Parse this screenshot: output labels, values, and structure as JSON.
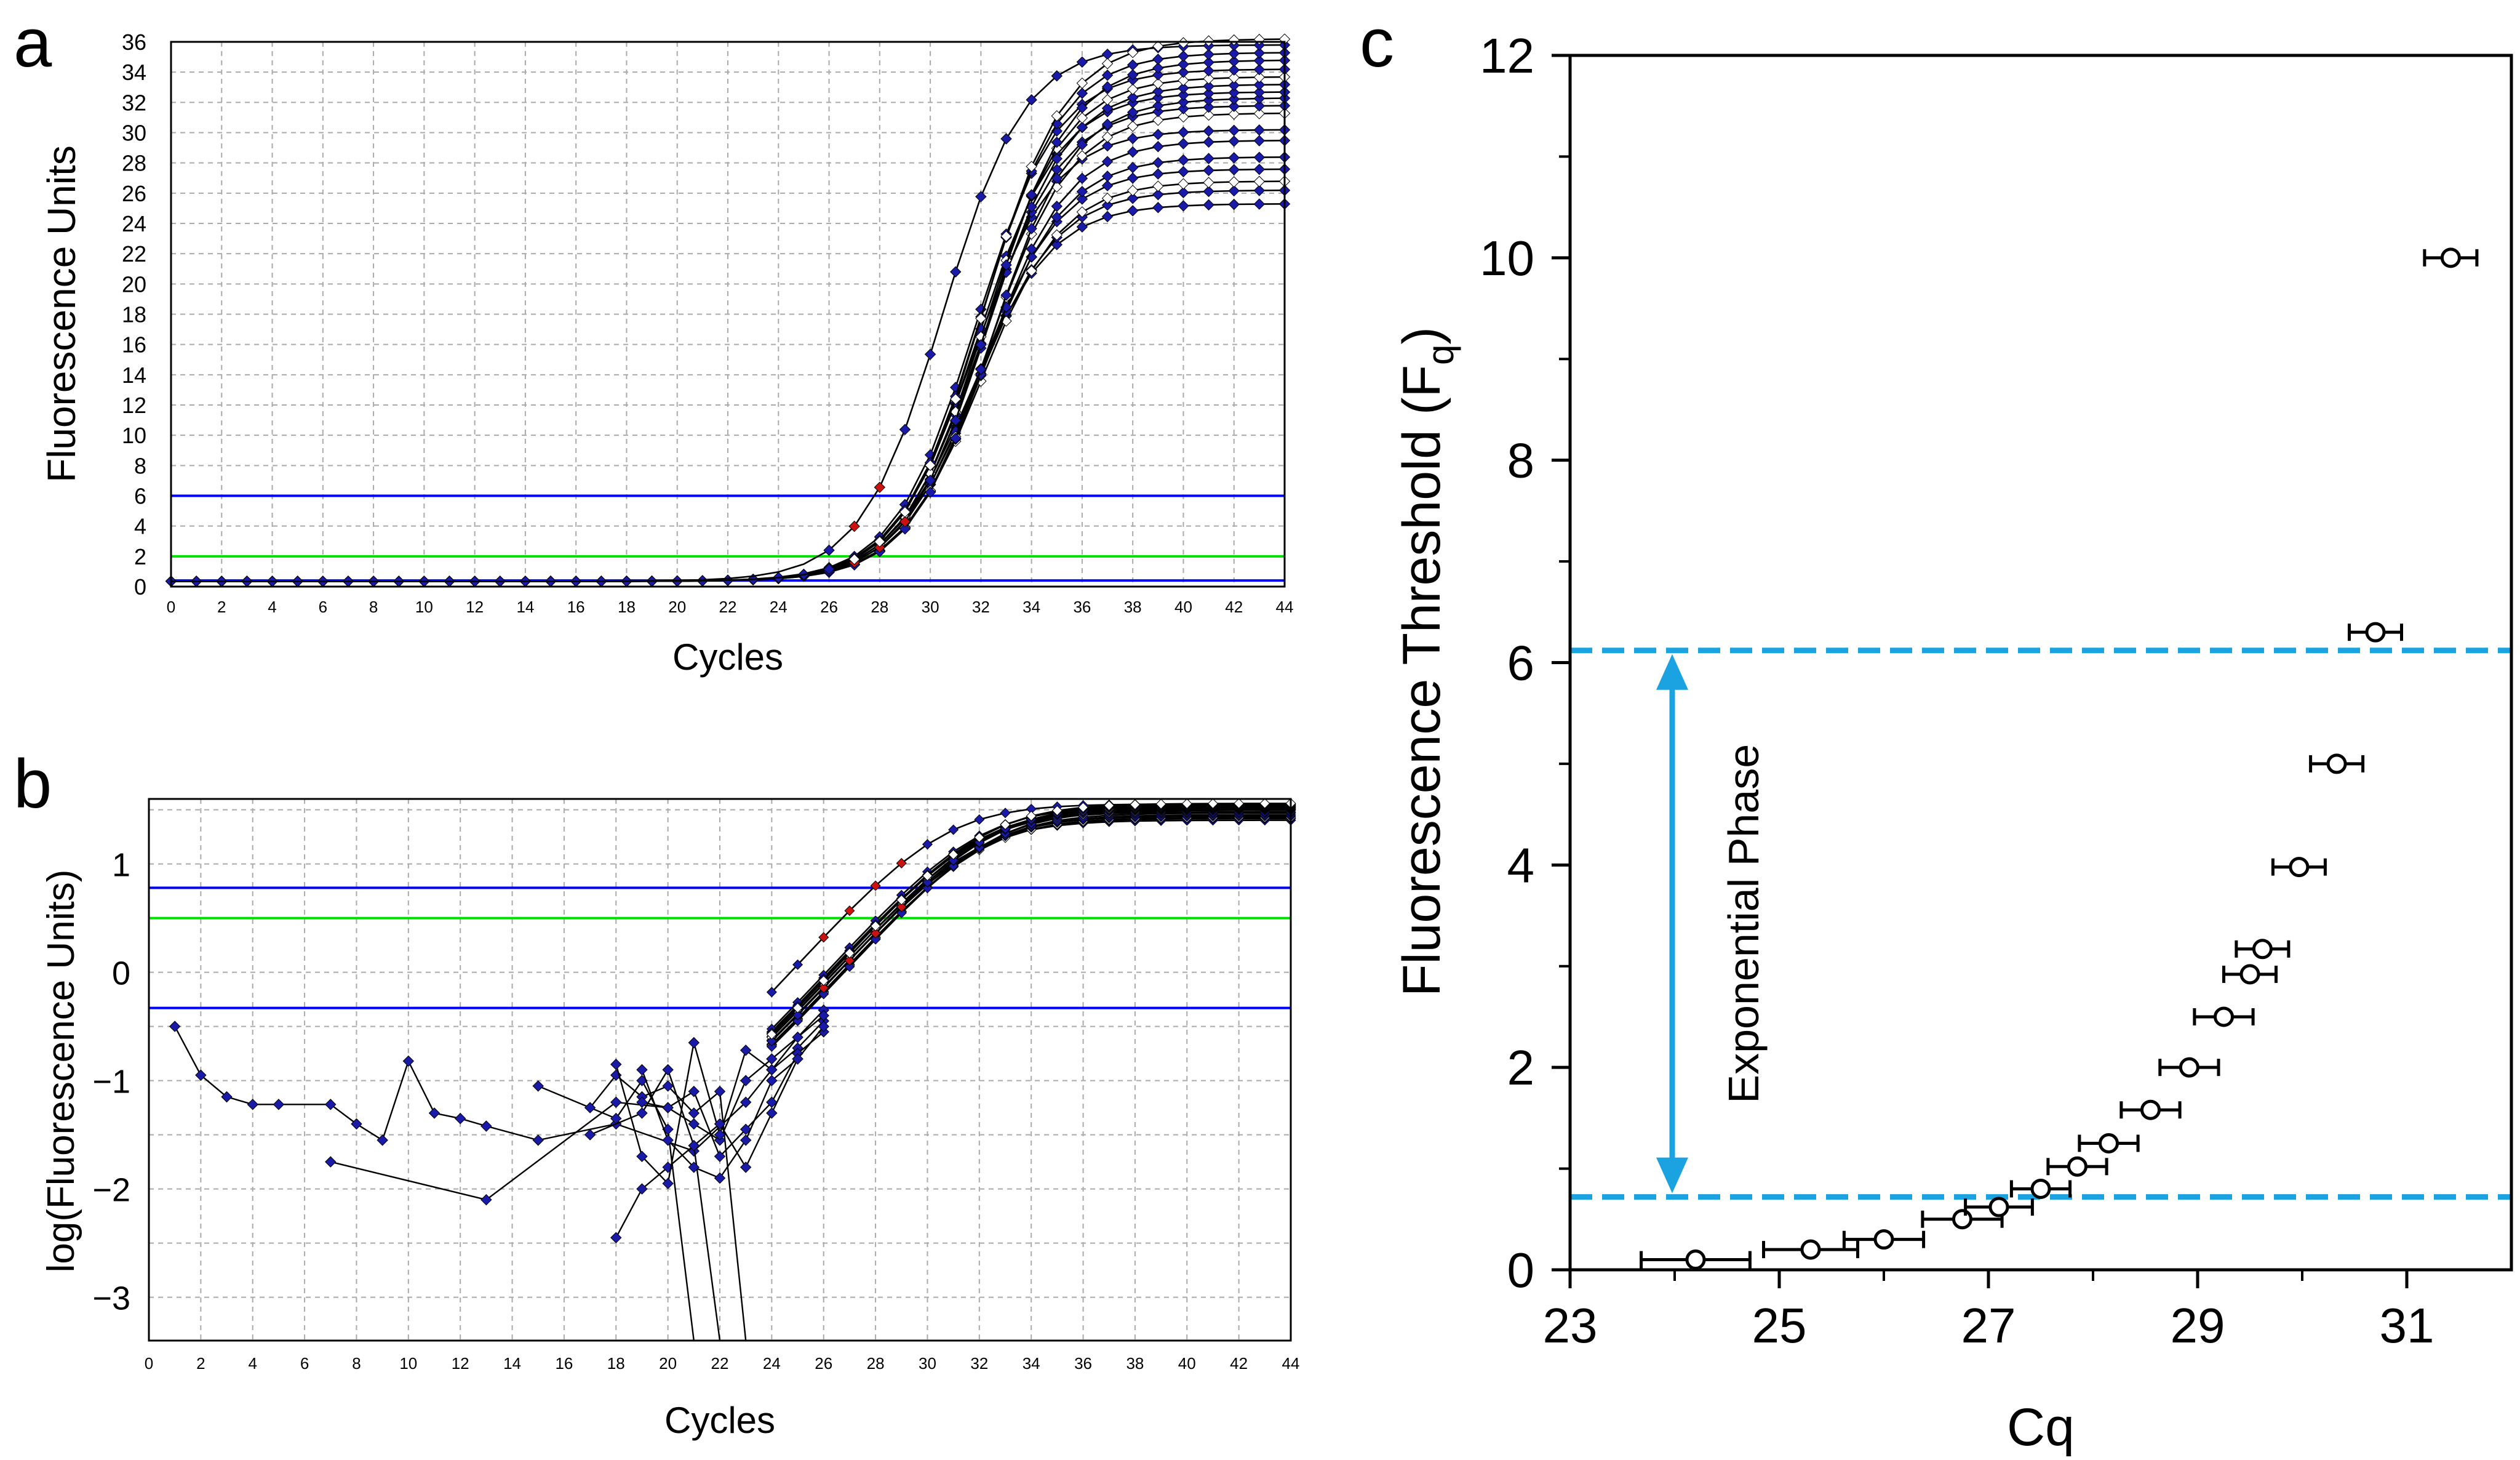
{
  "chart_data": [
    {
      "panel": "a",
      "type": "line",
      "xlabel": "Cycles",
      "ylabel": "Fluorescence Units",
      "xlim": [
        0,
        44
      ],
      "ylim": [
        0,
        36
      ],
      "xticks": [
        "0",
        "2",
        "4",
        "6",
        "8",
        "10",
        "12",
        "14",
        "16",
        "18",
        "20",
        "22",
        "24",
        "26",
        "28",
        "30",
        "32",
        "34",
        "36",
        "38",
        "40",
        "42",
        "44"
      ],
      "yticks": [
        "0",
        "2",
        "4",
        "6",
        "8",
        "10",
        "12",
        "14",
        "16",
        "18",
        "20",
        "22",
        "24",
        "26",
        "28",
        "30",
        "32",
        "34",
        "36"
      ],
      "grid": true,
      "threshold_lines": [
        {
          "y": 6.0,
          "color": "#0000ff"
        },
        {
          "y": 2.0,
          "color": "#00e000"
        },
        {
          "y": 0.4,
          "color": "#0000ff"
        }
      ],
      "curve_plateaus": [
        25.3,
        26.2,
        26.8,
        27.6,
        28.4,
        29.5,
        30.2,
        31.3,
        31.8,
        32.3,
        32.7,
        33.2,
        33.7,
        34.2,
        34.8,
        35.3,
        35.8,
        36.2
      ],
      "curve_midpoints": [
        31.6,
        31.8,
        32.0,
        31.9,
        32.1,
        32.2,
        31.7,
        32.3,
        32.0,
        32.4,
        31.9,
        32.2,
        32.1,
        31.8,
        32.3,
        32.0,
        30.5,
        32.1
      ],
      "marker_colors": {
        "main": "#1a1aa8",
        "early": "#cc1111"
      }
    },
    {
      "panel": "b",
      "type": "line",
      "xlabel": "Cycles",
      "ylabel": "log(Fluorescence Units)",
      "xlim": [
        0,
        44
      ],
      "ylim": [
        -3.4,
        1.6
      ],
      "xticks": [
        "0",
        "2",
        "4",
        "6",
        "8",
        "10",
        "12",
        "14",
        "16",
        "18",
        "20",
        "22",
        "24",
        "26",
        "28",
        "30",
        "32",
        "34",
        "36",
        "38",
        "40",
        "42",
        "44"
      ],
      "yticks": [
        {
          "value": 1,
          "label": "1"
        },
        {
          "value": 0,
          "label": "0"
        },
        {
          "value": -1,
          "label": "−1"
        },
        {
          "value": -2,
          "label": "−2"
        },
        {
          "value": -3,
          "label": "−3"
        }
      ],
      "grid": true,
      "threshold_lines": [
        {
          "y": 0.78,
          "color": "#0000ff"
        },
        {
          "y": 0.5,
          "color": "#00e000"
        },
        {
          "y": -0.33,
          "color": "#0000ff"
        }
      ],
      "noisy_series": [
        [
          [
            1,
            -0.5
          ],
          [
            2,
            -0.95
          ],
          [
            3,
            -1.15
          ],
          [
            4,
            -1.22
          ],
          [
            5,
            -1.22
          ],
          [
            7,
            -1.22
          ],
          [
            8,
            -1.4
          ],
          [
            9,
            -1.55
          ],
          [
            10,
            -0.82
          ],
          [
            11,
            -1.3
          ],
          [
            12,
            -1.35
          ],
          [
            13,
            -1.42
          ],
          [
            15,
            -1.55
          ],
          [
            18,
            -1.4
          ],
          [
            21,
            -1.65
          ],
          [
            23,
            -1.2
          ],
          [
            24,
            -0.9
          ],
          [
            25,
            -0.7
          ],
          [
            26,
            -0.45
          ]
        ],
        [
          [
            7,
            -1.75
          ],
          [
            13,
            -2.1
          ],
          [
            18,
            -1.2
          ],
          [
            20,
            -1.25
          ],
          [
            21,
            -1.4
          ],
          [
            22,
            -1.55
          ],
          [
            23,
            -1.0
          ],
          [
            24,
            -0.8
          ],
          [
            25,
            -0.6
          ],
          [
            26,
            -0.35
          ]
        ],
        [
          [
            15,
            -1.05
          ],
          [
            18,
            -1.35
          ],
          [
            19,
            -1.0
          ],
          [
            20,
            -1.45
          ],
          [
            21,
            -3.4
          ]
        ],
        [
          [
            18,
            -2.45
          ],
          [
            19,
            -2.0
          ],
          [
            20,
            -1.8
          ],
          [
            21,
            -1.6
          ],
          [
            22,
            -3.4
          ]
        ],
        [
          [
            17,
            -1.25
          ],
          [
            18,
            -0.95
          ],
          [
            19,
            -1.15
          ],
          [
            20,
            -1.05
          ],
          [
            21,
            -1.3
          ],
          [
            22,
            -1.1
          ],
          [
            23,
            -3.4
          ]
        ],
        [
          [
            18,
            -0.85
          ],
          [
            19,
            -1.7
          ],
          [
            20,
            -1.95
          ],
          [
            21,
            -0.65
          ],
          [
            22,
            -1.5
          ],
          [
            23,
            -0.72
          ],
          [
            24,
            -0.9
          ],
          [
            25,
            -0.6
          ],
          [
            26,
            -0.4
          ]
        ],
        [
          [
            19,
            -1.2
          ],
          [
            20,
            -1.25
          ],
          [
            21,
            -1.1
          ],
          [
            22,
            -1.7
          ],
          [
            23,
            -1.45
          ],
          [
            24,
            -1.2
          ],
          [
            25,
            -0.75
          ],
          [
            26,
            -0.55
          ]
        ],
        [
          [
            19,
            -0.9
          ],
          [
            20,
            -1.55
          ],
          [
            21,
            -1.8
          ],
          [
            22,
            -1.9
          ],
          [
            23,
            -1.55
          ],
          [
            24,
            -1.0
          ],
          [
            25,
            -0.8
          ],
          [
            26,
            -0.5
          ]
        ],
        [
          [
            17,
            -1.5
          ],
          [
            19,
            -1.3
          ],
          [
            20,
            -0.9
          ],
          [
            21,
            -1.6
          ],
          [
            22,
            -1.4
          ],
          [
            23,
            -1.8
          ],
          [
            24,
            -1.3
          ],
          [
            25,
            -0.8
          ]
        ]
      ]
    },
    {
      "panel": "c",
      "type": "scatter",
      "xlabel": "Cq",
      "ylabel": "Fluorescence Threshold (F",
      "ylabel_subscript": "q",
      "ylabel_close": ")",
      "xlim": [
        23,
        32
      ],
      "ylim": [
        0,
        12
      ],
      "xticks": [
        "23",
        "25",
        "27",
        "29",
        "31"
      ],
      "yticks": [
        "0",
        "2",
        "4",
        "6",
        "8",
        "10",
        "12"
      ],
      "grid": false,
      "exponential_phase": {
        "label": "Exponential Phase",
        "y_low": 0.72,
        "y_high": 6.12,
        "color": "#1aa3e0"
      },
      "points": [
        {
          "x": 24.2,
          "y": 0.1,
          "xerr": 0.52
        },
        {
          "x": 25.3,
          "y": 0.2,
          "xerr": 0.45
        },
        {
          "x": 26.0,
          "y": 0.3,
          "xerr": 0.38
        },
        {
          "x": 26.75,
          "y": 0.5,
          "xerr": 0.38
        },
        {
          "x": 27.1,
          "y": 0.62,
          "xerr": 0.32
        },
        {
          "x": 27.5,
          "y": 0.8,
          "xerr": 0.28
        },
        {
          "x": 27.85,
          "y": 1.02,
          "xerr": 0.28
        },
        {
          "x": 28.15,
          "y": 1.25,
          "xerr": 0.28
        },
        {
          "x": 28.55,
          "y": 1.58,
          "xerr": 0.28
        },
        {
          "x": 28.92,
          "y": 2.0,
          "xerr": 0.28
        },
        {
          "x": 29.25,
          "y": 2.5,
          "xerr": 0.28
        },
        {
          "x": 29.5,
          "y": 2.92,
          "xerr": 0.25
        },
        {
          "x": 29.62,
          "y": 3.17,
          "xerr": 0.25
        },
        {
          "x": 29.97,
          "y": 3.98,
          "xerr": 0.25
        },
        {
          "x": 30.33,
          "y": 5.0,
          "xerr": 0.25
        },
        {
          "x": 30.7,
          "y": 6.3,
          "xerr": 0.25
        },
        {
          "x": 31.42,
          "y": 10.0,
          "xerr": 0.25
        }
      ]
    }
  ],
  "panel_labels": [
    "a",
    "b",
    "c"
  ]
}
